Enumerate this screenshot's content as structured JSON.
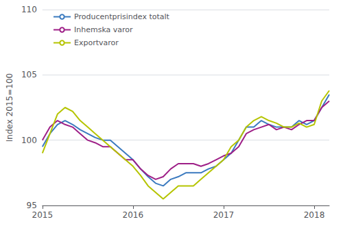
{
  "chart_data": {
    "type": "line",
    "ylabel": "Index 2015=100",
    "categories": [
      "2015",
      null,
      null,
      null,
      null,
      null,
      null,
      null,
      null,
      null,
      null,
      null,
      "2016",
      null,
      null,
      null,
      null,
      null,
      null,
      null,
      null,
      null,
      null,
      null,
      "2017",
      null,
      null,
      null,
      null,
      null,
      null,
      null,
      null,
      null,
      null,
      null,
      "2018",
      null,
      null
    ],
    "series": [
      {
        "name": "Producentprisindex totalt",
        "color": "#3b7abf",
        "values": [
          99.5,
          100.5,
          101.2,
          101.5,
          101.2,
          100.8,
          100.5,
          100.2,
          100.0,
          100.0,
          99.5,
          99.0,
          98.5,
          97.8,
          97.2,
          96.7,
          96.5,
          97.0,
          97.2,
          97.5,
          97.5,
          97.5,
          97.8,
          98.0,
          98.5,
          99.0,
          100.0,
          101.0,
          101.0,
          101.5,
          101.2,
          101.0,
          101.0,
          101.0,
          101.5,
          101.2,
          101.5,
          102.5,
          103.5
        ]
      },
      {
        "name": "Inhemska varor",
        "color": "#9e1f87",
        "values": [
          100.0,
          101.0,
          101.5,
          101.2,
          101.0,
          100.5,
          100.0,
          99.8,
          99.5,
          99.5,
          99.0,
          98.5,
          98.5,
          97.8,
          97.3,
          97.0,
          97.2,
          97.8,
          98.2,
          98.2,
          98.2,
          98.0,
          98.2,
          98.5,
          98.8,
          99.0,
          99.5,
          100.5,
          100.8,
          101.0,
          101.2,
          100.8,
          101.0,
          100.8,
          101.2,
          101.5,
          101.5,
          102.5,
          103.0
        ]
      },
      {
        "name": "Exportvaror",
        "color": "#b5c400",
        "values": [
          99.0,
          100.5,
          102.0,
          102.5,
          102.2,
          101.5,
          101.0,
          100.5,
          100.0,
          99.5,
          99.0,
          98.5,
          98.0,
          97.3,
          96.5,
          96.0,
          95.5,
          96.0,
          96.5,
          96.5,
          96.5,
          97.0,
          97.5,
          98.0,
          98.5,
          99.5,
          100.0,
          101.0,
          101.5,
          101.8,
          101.5,
          101.3,
          101.0,
          101.0,
          101.3,
          101.0,
          101.2,
          103.0,
          103.8
        ]
      }
    ],
    "ylim": [
      95,
      110
    ],
    "yticks": [
      95,
      100,
      105,
      110
    ],
    "grid": true,
    "legend": "upper left"
  }
}
